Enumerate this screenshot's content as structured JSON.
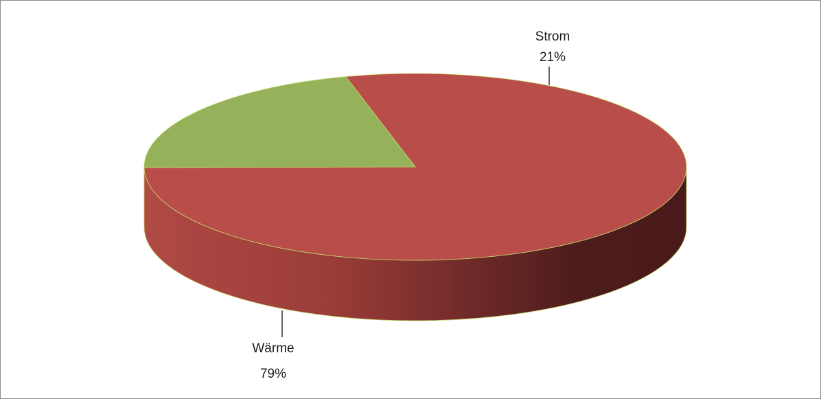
{
  "chart_data": {
    "type": "pie",
    "style": "3d",
    "slices": [
      {
        "label": "Wärme",
        "value": 79,
        "percent_label": "79%",
        "color": "#b94d49"
      },
      {
        "label": "Strom",
        "value": 21,
        "percent_label": "21%",
        "color": "#95b15a"
      }
    ],
    "side_shadow_color": "#4a1a1a",
    "edge_color": "#c5d86d"
  }
}
